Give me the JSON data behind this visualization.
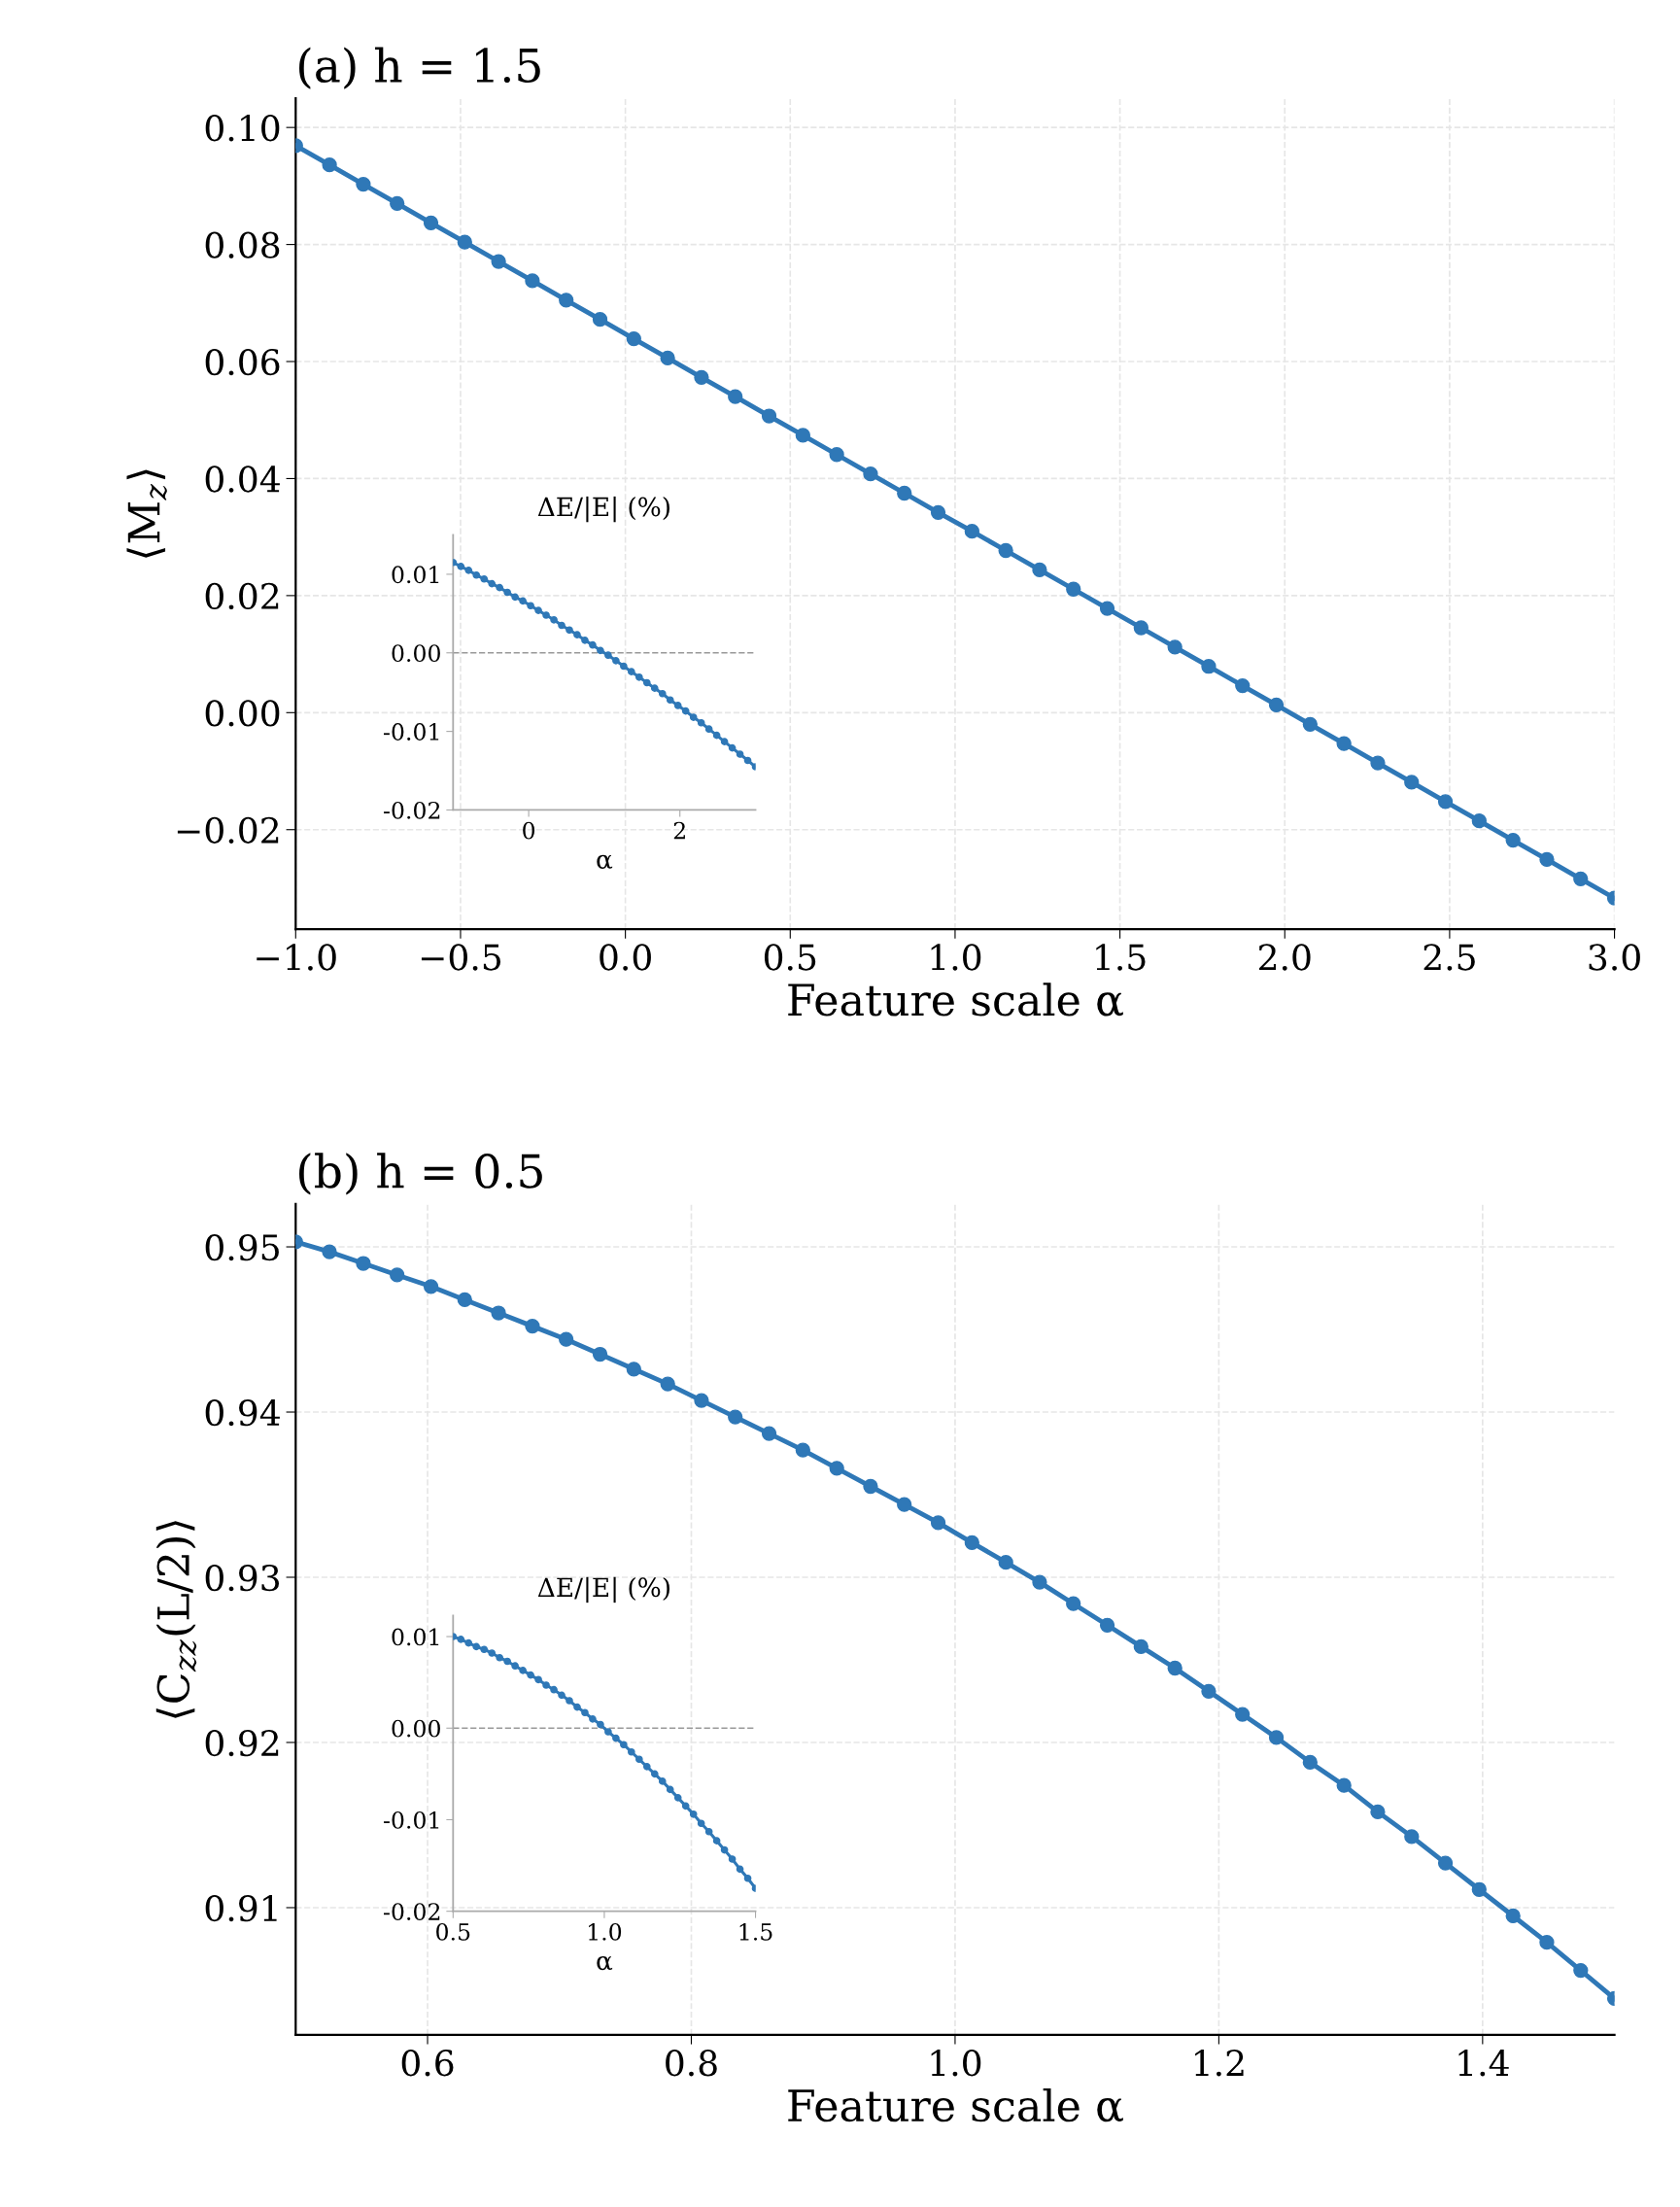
{
  "chart_data": [
    {
      "type": "line",
      "title": "(a) h = 1.5",
      "xlabel": "Feature scale α",
      "ylabel": "⟨M$_{z}$⟩",
      "marker": "circle",
      "grid": true,
      "xlim": [
        -1,
        3
      ],
      "ylim": [
        -0.037,
        0.105
      ],
      "xticks": [
        {
          "value": -1,
          "label": "−1.0"
        },
        {
          "value": -0.5,
          "label": "−0.5"
        },
        {
          "value": 0,
          "label": "0.0"
        },
        {
          "value": 0.5,
          "label": "0.5"
        },
        {
          "value": 1,
          "label": "1.0"
        },
        {
          "value": 1.5,
          "label": "1.5"
        },
        {
          "value": 2,
          "label": "2.0"
        },
        {
          "value": 2.5,
          "label": "2.5"
        },
        {
          "value": 3,
          "label": "3.0"
        }
      ],
      "yticks": [
        {
          "value": -0.02,
          "label": "−0.02"
        },
        {
          "value": 0,
          "label": "0.00"
        },
        {
          "value": 0.02,
          "label": "0.02"
        },
        {
          "value": 0.04,
          "label": "0.04"
        },
        {
          "value": 0.06,
          "label": "0.06"
        },
        {
          "value": 0.08,
          "label": "0.08"
        },
        {
          "value": 0.1,
          "label": "0.10"
        }
      ],
      "x": [
        -1.0,
        -0.8974,
        -0.7949,
        -0.6923,
        -0.5897,
        -0.4872,
        -0.3846,
        -0.2821,
        -0.1795,
        -0.0769,
        0.0256,
        0.1282,
        0.2308,
        0.3333,
        0.4359,
        0.5385,
        0.641,
        0.7436,
        0.8462,
        0.9487,
        1.0513,
        1.1538,
        1.2564,
        1.359,
        1.4615,
        1.5641,
        1.6667,
        1.7692,
        1.8718,
        1.9744,
        2.0769,
        2.1795,
        2.2821,
        2.3846,
        2.4872,
        2.5897,
        2.6923,
        2.7949,
        2.8974,
        3.0
      ],
      "series": [
        {
          "color": "#2f78b7",
          "values": [
            0.0969,
            0.0936,
            0.0903,
            0.087,
            0.0837,
            0.0804,
            0.0771,
            0.0738,
            0.0705,
            0.0672,
            0.0639,
            0.0606,
            0.0573,
            0.054,
            0.0507,
            0.0474,
            0.0441,
            0.0408,
            0.0375,
            0.0342,
            0.031,
            0.0277,
            0.0244,
            0.0211,
            0.0178,
            0.0145,
            0.0112,
            0.0079,
            0.0046,
            0.0013,
            -0.002,
            -0.0053,
            -0.0086,
            -0.0119,
            -0.0152,
            -0.0185,
            -0.0218,
            -0.0251,
            -0.0284,
            -0.0317
          ]
        }
      ]
    },
    {
      "type": "line",
      "title": "ΔE/|E| (%)",
      "xlabel": "α",
      "marker": "circle",
      "grid": false,
      "xlim": [
        -1,
        3
      ],
      "ylim": [
        -0.02,
        0.015
      ],
      "xticks": [
        {
          "value": 0,
          "label": "0"
        },
        {
          "value": 2,
          "label": "2"
        }
      ],
      "yticks": [
        {
          "value": -0.02,
          "label": "-0.02"
        },
        {
          "value": -0.01,
          "label": "-0.01"
        },
        {
          "value": 0,
          "label": "0.00"
        },
        {
          "value": 0.01,
          "label": "0.01"
        }
      ],
      "ref_lines": [
        {
          "axis": "y",
          "value": 0,
          "color": "#999999",
          "line_style": "dashed"
        }
      ],
      "x": [
        -1.0,
        -0.8974,
        -0.7949,
        -0.6923,
        -0.5897,
        -0.4872,
        -0.3846,
        -0.2821,
        -0.1795,
        -0.0769,
        0.0256,
        0.1282,
        0.2308,
        0.3333,
        0.4359,
        0.5385,
        0.641,
        0.7436,
        0.8462,
        0.9487,
        1.0513,
        1.1538,
        1.2564,
        1.359,
        1.4615,
        1.5641,
        1.6667,
        1.7692,
        1.8718,
        1.9744,
        2.0769,
        2.1795,
        2.2821,
        2.3846,
        2.4872,
        2.5897,
        2.6923,
        2.7949,
        2.8974,
        3.0
      ],
      "series": [
        {
          "color": "#2f78b7",
          "values": [
            0.0115,
            0.011,
            0.0105,
            0.0099,
            0.0094,
            0.0088,
            0.0083,
            0.0077,
            0.0071,
            0.0066,
            0.006,
            0.0054,
            0.0048,
            0.0042,
            0.0035,
            0.0029,
            0.0023,
            0.0016,
            0.001,
            0.0003,
            -0.0003,
            -0.001,
            -0.0017,
            -0.0024,
            -0.0031,
            -0.0038,
            -0.0045,
            -0.0052,
            -0.006,
            -0.0067,
            -0.0074,
            -0.0082,
            -0.0089,
            -0.0097,
            -0.0105,
            -0.0113,
            -0.0121,
            -0.0129,
            -0.0137,
            -0.0145
          ]
        }
      ]
    },
    {
      "type": "line",
      "title": "(b) h = 0.5",
      "xlabel": "Feature scale α",
      "ylabel": "⟨C$_{zz}$(L/2)⟩",
      "marker": "circle",
      "grid": true,
      "xlim": [
        0.5,
        1.5
      ],
      "ylim": [
        0.9023,
        0.9526
      ],
      "xticks": [
        {
          "value": 0.6,
          "label": "0.6"
        },
        {
          "value": 0.8,
          "label": "0.8"
        },
        {
          "value": 1.0,
          "label": "1.0"
        },
        {
          "value": 1.2,
          "label": "1.2"
        },
        {
          "value": 1.4,
          "label": "1.4"
        }
      ],
      "yticks": [
        {
          "value": 0.91,
          "label": "0.91"
        },
        {
          "value": 0.92,
          "label": "0.92"
        },
        {
          "value": 0.93,
          "label": "0.93"
        },
        {
          "value": 0.94,
          "label": "0.94"
        },
        {
          "value": 0.95,
          "label": "0.95"
        }
      ],
      "x": [
        0.5,
        0.5256,
        0.5513,
        0.5769,
        0.6026,
        0.6282,
        0.6538,
        0.6795,
        0.7051,
        0.7308,
        0.7564,
        0.7821,
        0.8077,
        0.8333,
        0.859,
        0.8846,
        0.9103,
        0.9359,
        0.9615,
        0.9872,
        1.0128,
        1.0385,
        1.0641,
        1.0897,
        1.1154,
        1.141,
        1.1667,
        1.1923,
        1.2179,
        1.2436,
        1.2692,
        1.2949,
        1.3205,
        1.3462,
        1.3718,
        1.3974,
        1.4231,
        1.4487,
        1.4744,
        1.5
      ],
      "series": [
        {
          "color": "#2f78b7",
          "values": [
            0.9503,
            0.9497,
            0.949,
            0.9483,
            0.9476,
            0.9468,
            0.946,
            0.9452,
            0.9444,
            0.9435,
            0.9426,
            0.9417,
            0.9407,
            0.9397,
            0.9387,
            0.9377,
            0.9366,
            0.9355,
            0.9344,
            0.9333,
            0.9321,
            0.9309,
            0.9297,
            0.9284,
            0.9271,
            0.9258,
            0.9245,
            0.9231,
            0.9217,
            0.9203,
            0.9188,
            0.9174,
            0.9158,
            0.9143,
            0.9127,
            0.9111,
            0.9095,
            0.9079,
            0.9062,
            0.9045
          ]
        }
      ]
    },
    {
      "type": "line",
      "title": "ΔE/|E| (%)",
      "xlabel": "α",
      "marker": "circle",
      "grid": false,
      "xlim": [
        0.5,
        1.5
      ],
      "ylim": [
        -0.02,
        0.0123
      ],
      "xticks": [
        {
          "value": 0.5,
          "label": "0.5"
        },
        {
          "value": 1.0,
          "label": "1.0"
        },
        {
          "value": 1.5,
          "label": "1.5"
        }
      ],
      "yticks": [
        {
          "value": -0.02,
          "label": "-0.02"
        },
        {
          "value": -0.01,
          "label": "-0.01"
        },
        {
          "value": 0,
          "label": "0.00"
        },
        {
          "value": 0.01,
          "label": "0.01"
        }
      ],
      "ref_lines": [
        {
          "axis": "y",
          "value": 0,
          "color": "#999999",
          "line_style": "dashed"
        }
      ],
      "x": [
        0.5,
        0.5256,
        0.5513,
        0.5769,
        0.6026,
        0.6282,
        0.6538,
        0.6795,
        0.7051,
        0.7308,
        0.7564,
        0.7821,
        0.8077,
        0.8333,
        0.859,
        0.8846,
        0.9103,
        0.9359,
        0.9615,
        0.9872,
        1.0128,
        1.0385,
        1.0641,
        1.0897,
        1.1154,
        1.141,
        1.1667,
        1.1923,
        1.2179,
        1.2436,
        1.2692,
        1.2949,
        1.3205,
        1.3462,
        1.3718,
        1.3974,
        1.4231,
        1.4487,
        1.4744,
        1.5
      ],
      "series": [
        {
          "color": "#2f78b7",
          "values": [
            0.01,
            0.0097,
            0.0093,
            0.0089,
            0.0086,
            0.0082,
            0.0077,
            0.0073,
            0.0068,
            0.0063,
            0.0058,
            0.0053,
            0.0047,
            0.0042,
            0.0036,
            0.003,
            0.0023,
            0.0017,
            0.001,
            0.0004,
            -0.0004,
            -0.0011,
            -0.0018,
            -0.0026,
            -0.0034,
            -0.0042,
            -0.005,
            -0.0058,
            -0.0067,
            -0.0076,
            -0.0085,
            -0.0094,
            -0.0104,
            -0.0113,
            -0.0123,
            -0.0133,
            -0.0143,
            -0.0154,
            -0.0164,
            -0.0175
          ]
        }
      ]
    }
  ]
}
